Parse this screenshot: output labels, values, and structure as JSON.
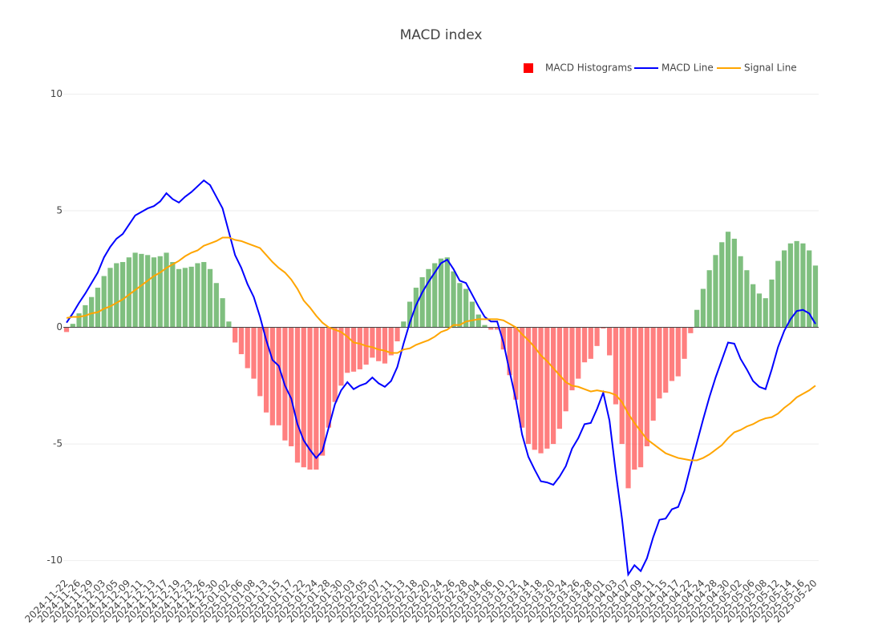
{
  "chart_data": {
    "type": "bar",
    "title": "MACD index",
    "categories": [
      "2024-11-22",
      null,
      "2024-11-26",
      null,
      "2024-11-29",
      null,
      "2024-12-03",
      null,
      "2024-12-05",
      null,
      "2024-12-09",
      null,
      "2024-12-11",
      null,
      "2024-12-13",
      null,
      "2024-12-17",
      null,
      "2024-12-19",
      null,
      "2024-12-23",
      null,
      "2024-12-26",
      null,
      "2024-12-30",
      null,
      "2025-01-02",
      null,
      "2025-01-06",
      null,
      "2025-01-08",
      null,
      "2025-01-13",
      null,
      "2025-01-15",
      null,
      "2025-01-17",
      null,
      "2025-01-22",
      null,
      "2025-01-24",
      null,
      "2025-01-28",
      null,
      "2025-01-30",
      null,
      "2025-02-03",
      null,
      "2025-02-05",
      null,
      "2025-02-07",
      null,
      "2025-02-11",
      null,
      "2025-02-13",
      null,
      "2025-02-18",
      null,
      "2025-02-20",
      null,
      "2025-02-24",
      null,
      "2025-02-26",
      null,
      "2025-02-28",
      null,
      "2025-03-04",
      null,
      "2025-03-06",
      null,
      "2025-03-10",
      null,
      "2025-03-12",
      null,
      "2025-03-14",
      null,
      "2025-03-18",
      null,
      "2025-03-20",
      null,
      "2025-03-24",
      null,
      "2025-03-26",
      null,
      "2025-03-28",
      null,
      "2025-04-01",
      null,
      "2025-04-03",
      null,
      "2025-04-07",
      null,
      "2025-04-09",
      null,
      "2025-04-11",
      null,
      "2025-04-15",
      null,
      "2025-04-17",
      null,
      "2025-04-22",
      null,
      "2025-04-24",
      null,
      "2025-04-28",
      null,
      "2025-04-30",
      null,
      "2025-05-02",
      null,
      "2025-05-06",
      null,
      "2025-05-08",
      null,
      "2025-05-12",
      null,
      "2025-05-14",
      null,
      "2025-05-16",
      null,
      "2025-05-20"
    ],
    "series": [
      {
        "name": "MACD Histograms",
        "type": "bar",
        "color": "red",
        "color_positive": "green",
        "color_negative": "red",
        "opacity": 0.5,
        "values": [
          -0.2,
          0.15,
          0.6,
          0.95,
          1.3,
          1.7,
          2.2,
          2.55,
          2.75,
          2.8,
          3.0,
          3.2,
          3.15,
          3.1,
          3.0,
          3.05,
          3.2,
          2.8,
          2.5,
          2.55,
          2.6,
          2.75,
          2.8,
          2.5,
          1.9,
          1.25,
          0.25,
          -0.65,
          -1.15,
          -1.75,
          -2.2,
          -2.95,
          -3.65,
          -4.2,
          -4.2,
          -4.85,
          -5.1,
          -5.8,
          -6.0,
          -6.1,
          -6.1,
          -5.5,
          -4.3,
          -3.2,
          -2.5,
          -1.95,
          -1.9,
          -1.8,
          -1.6,
          -1.3,
          -1.45,
          -1.55,
          -1.2,
          -0.6,
          0.25,
          1.1,
          1.7,
          2.15,
          2.5,
          2.75,
          2.95,
          3.0,
          2.4,
          1.9,
          1.65,
          1.1,
          0.55,
          0.1,
          -0.1,
          -0.1,
          -0.95,
          -2.05,
          -3.1,
          -4.3,
          -5.0,
          -5.25,
          -5.4,
          -5.2,
          -5.0,
          -4.35,
          -3.6,
          -2.7,
          -2.2,
          -1.5,
          -1.35,
          -0.8,
          -0.05,
          -1.2,
          -3.3,
          -5.0,
          -6.9,
          -6.1,
          -6.0,
          -5.1,
          -4.0,
          -3.05,
          -2.8,
          -2.3,
          -2.1,
          -1.35,
          -0.25,
          0.75,
          1.65,
          2.45,
          3.1,
          3.65,
          4.1,
          3.8,
          3.05,
          2.45,
          1.85,
          1.45,
          1.25,
          2.05,
          2.85,
          3.3,
          3.6,
          3.7,
          3.6,
          3.3,
          2.65
        ]
      },
      {
        "name": "MACD Line",
        "type": "line",
        "color": "blue",
        "values": [
          0.2,
          0.6,
          1.05,
          1.45,
          1.9,
          2.35,
          3.0,
          3.45,
          3.8,
          4.0,
          4.4,
          4.8,
          4.95,
          5.1,
          5.2,
          5.4,
          5.75,
          5.5,
          5.35,
          5.6,
          5.8,
          6.05,
          6.3,
          6.1,
          5.6,
          5.1,
          4.1,
          3.1,
          2.55,
          1.85,
          1.3,
          0.45,
          -0.55,
          -1.4,
          -1.65,
          -2.5,
          -3.05,
          -4.15,
          -4.85,
          -5.25,
          -5.6,
          -5.3,
          -4.3,
          -3.3,
          -2.7,
          -2.35,
          -2.65,
          -2.5,
          -2.4,
          -2.15,
          -2.4,
          -2.55,
          -2.3,
          -1.7,
          -0.7,
          0.2,
          0.95,
          1.5,
          1.95,
          2.35,
          2.75,
          2.9,
          2.5,
          2.0,
          1.9,
          1.4,
          0.9,
          0.45,
          0.25,
          0.25,
          -0.65,
          -1.9,
          -3.1,
          -4.6,
          -5.55,
          -6.1,
          -6.6,
          -6.65,
          -6.75,
          -6.4,
          -5.95,
          -5.2,
          -4.75,
          -4.15,
          -4.1,
          -3.5,
          -2.8,
          -4.0,
          -6.2,
          -8.2,
          -10.6,
          -10.2,
          -10.45,
          -9.9,
          -9.0,
          -8.25,
          -8.2,
          -7.8,
          -7.7,
          -7.0,
          -5.95,
          -4.95,
          -3.95,
          -3.0,
          -2.15,
          -1.4,
          -0.65,
          -0.7,
          -1.35,
          -1.8,
          -2.3,
          -2.55,
          -2.65,
          -1.8,
          -0.85,
          -0.15,
          0.35,
          0.7,
          0.75,
          0.6,
          0.15
        ]
      },
      {
        "name": "Signal Line",
        "type": "line",
        "color": "orange",
        "values": [
          0.4,
          0.45,
          0.45,
          0.5,
          0.6,
          0.65,
          0.8,
          0.9,
          1.05,
          1.2,
          1.4,
          1.6,
          1.8,
          2.0,
          2.2,
          2.35,
          2.55,
          2.7,
          2.85,
          3.05,
          3.2,
          3.3,
          3.5,
          3.6,
          3.7,
          3.85,
          3.85,
          3.75,
          3.7,
          3.6,
          3.5,
          3.4,
          3.1,
          2.8,
          2.55,
          2.35,
          2.05,
          1.65,
          1.15,
          0.85,
          0.5,
          0.2,
          0,
          -0.1,
          -0.2,
          -0.4,
          -0.65,
          -0.7,
          -0.8,
          -0.85,
          -0.95,
          -1.0,
          -1.1,
          -1.1,
          -0.95,
          -0.9,
          -0.75,
          -0.65,
          -0.55,
          -0.4,
          -0.2,
          -0.1,
          0.1,
          0.1,
          0.25,
          0.3,
          0.35,
          0.35,
          0.35,
          0.35,
          0.3,
          0.15,
          0,
          -0.3,
          -0.55,
          -0.85,
          -1.2,
          -1.45,
          -1.75,
          -2.05,
          -2.35,
          -2.5,
          -2.55,
          -2.65,
          -2.75,
          -2.7,
          -2.75,
          -2.8,
          -2.9,
          -3.2,
          -3.7,
          -4.1,
          -4.45,
          -4.8,
          -5.0,
          -5.2,
          -5.4,
          -5.5,
          -5.6,
          -5.65,
          -5.7,
          -5.7,
          -5.6,
          -5.45,
          -5.25,
          -5.05,
          -4.75,
          -4.5,
          -4.4,
          -4.25,
          -4.15,
          -4.0,
          -3.9,
          -3.85,
          -3.7,
          -3.45,
          -3.25,
          -3.0,
          -2.85,
          -2.7,
          -2.5
        ]
      }
    ],
    "ylim": [
      -10.7,
      10.6
    ],
    "yticks": [
      -10,
      -5,
      0,
      5,
      10
    ],
    "grid": true,
    "legend": "top-right"
  }
}
